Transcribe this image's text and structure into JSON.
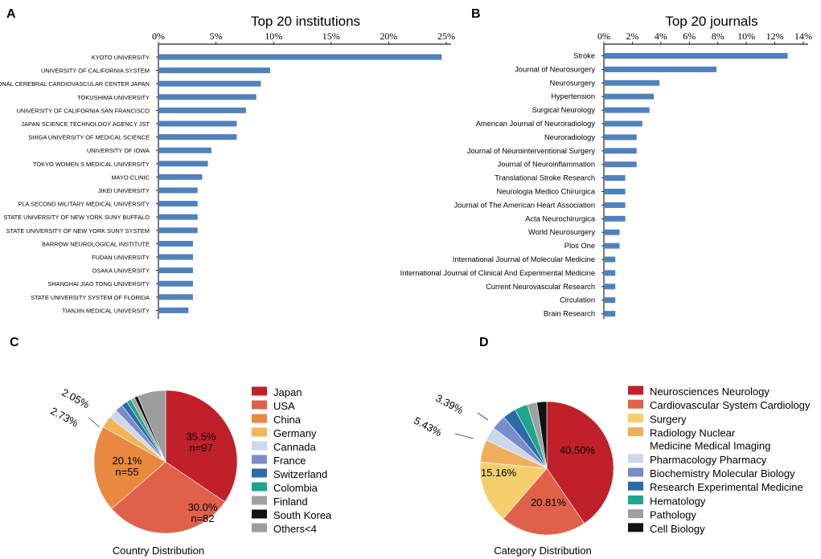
{
  "chart_data": [
    {
      "panel": "A",
      "type": "bar",
      "orientation": "horizontal",
      "title": "Top 20 institutions",
      "xlim": [
        0,
        25
      ],
      "ticks": [
        0,
        5,
        10,
        15,
        20,
        25
      ],
      "tick_labels": [
        "0%",
        "5%",
        "10%",
        "15%",
        "20%",
        "25%"
      ],
      "color": "#4f81bd",
      "categories": [
        "KYOTO UNIVERSITY",
        "UNIVERSITY OF CALIFORNIA SYSTEM",
        "NATIONAL CEREBRAL CARDIOVASCULAR CENTER JAPAN",
        "TOKUSHIMA UNIVERSITY",
        "UNIVERSITY OF CALIFORNIA SAN FRANCISCO",
        "JAPAN SCIENCE TECHNOLOGY AGENCY JST",
        "SHIGA UNIVERSITY OF MEDICAL SCIENCE",
        "UNIVERSITY OF IOWA",
        "TOKYO WOMEN S MEDICAL UNIVERSITY",
        "MAYO CLINIC",
        "JIKEI UNIVERSITY",
        "PLA SECOND MILITARY MEDICAL UNIVERSITY",
        "STATE UNIVERSITY OF NEW YORK SUNY BUFFALO",
        "STATE UNIVERSITY OF NEW YORK SUNY SYSTEM",
        "BARROW NEUROLOGICAL INSTITUTE",
        "FUDAN UNIVERSITY",
        "OSAKA UNIVERSITY",
        "SHANGHAI JIAO TONG UNIVERSITY",
        "STATE UNIVERSITY SYSTEM OF FLORIDA",
        "TIANJIN MEDICAL UNIVERSITY"
      ],
      "values": [
        24.6,
        9.7,
        8.9,
        8.5,
        7.6,
        6.8,
        6.8,
        4.6,
        4.3,
        3.8,
        3.4,
        3.4,
        3.4,
        3.4,
        3.0,
        3.0,
        3.0,
        3.0,
        3.0,
        2.6
      ]
    },
    {
      "panel": "B",
      "type": "bar",
      "orientation": "horizontal",
      "title": "Top 20 journals",
      "xlim": [
        0,
        14
      ],
      "ticks": [
        0,
        2,
        4,
        6,
        8,
        10,
        12,
        14
      ],
      "tick_labels": [
        "0%",
        "2%",
        "4%",
        "6%",
        "8%",
        "10%",
        "12%",
        "14%"
      ],
      "color": "#4f81bd",
      "categories": [
        "Stroke",
        "Journal of Neurosurgery",
        "Neurosurgery",
        "Hypertension",
        "Surgical Neurology",
        "American Journal of Neuroradiology",
        "Neuroradiology",
        "Journal of Neurointerventional Surgery",
        "Journal of Neuroinflammation",
        "Translational Stroke Research",
        "Neurologia Medico Chirurgica",
        "Journal of The American Heart Association",
        "Acta Neurochirurgica",
        "World Neurosurgery",
        "Plos One",
        "International Journal of Molecular Medicine",
        "International Journal of Clinical And Experimental Medicine",
        "Current Neurovascular Research",
        "Circulation",
        "Brain Research"
      ],
      "values": [
        12.9,
        7.9,
        3.9,
        3.5,
        3.2,
        2.7,
        2.3,
        2.3,
        2.3,
        1.5,
        1.5,
        1.5,
        1.5,
        1.1,
        1.1,
        0.8,
        0.8,
        0.8,
        0.8,
        0.8
      ]
    },
    {
      "panel": "C",
      "type": "pie",
      "caption": "Country Distribution",
      "slices": [
        {
          "name": "Japan",
          "value": 35.5,
          "color": "#c0202a",
          "label": "35.5%",
          "label2": "n=97"
        },
        {
          "name": "USA",
          "value": 30.0,
          "color": "#e0614a",
          "label": "30.0%",
          "label2": "n=82"
        },
        {
          "name": "China",
          "value": 20.1,
          "color": "#e8893f",
          "label": "20.1%",
          "label2": "n=55"
        },
        {
          "name": "Germany",
          "value": 2.73,
          "color": "#f2b457",
          "label": "2.73%"
        },
        {
          "name": "Cannada",
          "value": 2.05,
          "color": "#cdd7ec",
          "label": "2.05%"
        },
        {
          "name": "France",
          "value": 1.8,
          "color": "#7a8cc9"
        },
        {
          "name": "Switzerland",
          "value": 1.4,
          "color": "#2d6aa8"
        },
        {
          "name": "Colombia",
          "value": 1.1,
          "color": "#1fa58c"
        },
        {
          "name": "Finland",
          "value": 0.9,
          "color": "#a0a0a0"
        },
        {
          "name": "South Korea",
          "value": 0.8,
          "color": "#111111"
        },
        {
          "name": "Others<4",
          "value": 6.6,
          "color": "#9d9d9d"
        }
      ]
    },
    {
      "panel": "D",
      "type": "pie",
      "caption": "Category Distribution",
      "slices": [
        {
          "name": "Neurosciences Neurology",
          "value": 40.5,
          "color": "#c0202a",
          "label": "40.50%"
        },
        {
          "name": "Cardiovascular System Cardiology",
          "value": 20.81,
          "color": "#e0614a",
          "label": "20.81%"
        },
        {
          "name": "Surgery",
          "value": 15.16,
          "color": "#f6cf6d",
          "label": "15.16%"
        },
        {
          "name": "Radiology Nuclear\nMedicine Medical Imaging",
          "value": 5.43,
          "color": "#efae5b",
          "label": "5.43%"
        },
        {
          "name": "Pharmacology Pharmacy",
          "value": 3.39,
          "color": "#cdd7ec",
          "label": "3.39%"
        },
        {
          "name": "Biochemistry Molecular Biology",
          "value": 3.6,
          "color": "#7a8cc9"
        },
        {
          "name": "Research Experimental Medicine",
          "value": 3.2,
          "color": "#2d6aa8"
        },
        {
          "name": "Hematology",
          "value": 3.2,
          "color": "#1fa58c"
        },
        {
          "name": "Pathology",
          "value": 2.3,
          "color": "#a0a0a0"
        },
        {
          "name": "Cell Biology",
          "value": 2.41,
          "color": "#111111"
        }
      ]
    }
  ],
  "panel_letters": [
    "A",
    "B",
    "C",
    "D"
  ]
}
